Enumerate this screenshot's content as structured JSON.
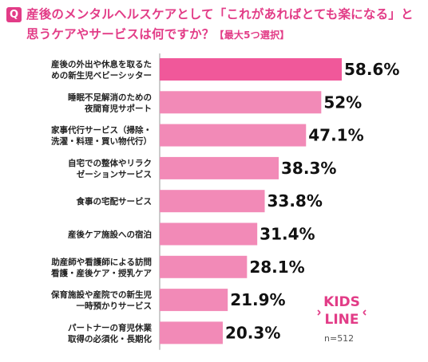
{
  "question": {
    "badge": "Q",
    "title": "産後のメンタルヘルスケアとして「これがあればとても楽になる」と思うケアやサービスは何ですか？",
    "note": "【最大5つ選択】"
  },
  "colors": {
    "accent": "#e23c87",
    "bar_top": "#f0589a",
    "bar": "#f28ab7"
  },
  "chart_data": {
    "type": "bar",
    "orientation": "horizontal",
    "title": "産後のメンタルヘルスケアとして「これがあればとても楽になる」と思うケアやサービスは何ですか？【最大5つ選択】",
    "categories": [
      [
        "産後の外出や休息を取るた",
        "めの新生児ベビーシッター"
      ],
      [
        "睡眠不足解消のための",
        "夜間育児サポート"
      ],
      [
        "家事代行サービス（掃除・",
        "洗濯・料理・買い物代行）"
      ],
      [
        "自宅での整体やリラク",
        "ゼーションサービス"
      ],
      [
        "食事の宅配サービス"
      ],
      [
        "産後ケア施設への宿泊"
      ],
      [
        "助産師や看護師による訪問",
        "看護・産後ケア・授乳ケア"
      ],
      [
        "保育施設や産院での新生児",
        "一時預かりサービス"
      ],
      [
        "パートナーの育児休業",
        "取得の必須化・長期化"
      ]
    ],
    "values": [
      58.6,
      52,
      47.1,
      38.3,
      33.8,
      31.4,
      28.1,
      21.9,
      20.3
    ],
    "value_labels": [
      "58.6%",
      "52%",
      "47.1%",
      "38.3%",
      "33.8%",
      "31.4%",
      "28.1%",
      "21.9%",
      "20.3%"
    ],
    "xlim": [
      0,
      65
    ],
    "grid": false
  },
  "logo": {
    "line1": "KIDS",
    "line2": "LINE"
  },
  "sample_size": "n=512"
}
